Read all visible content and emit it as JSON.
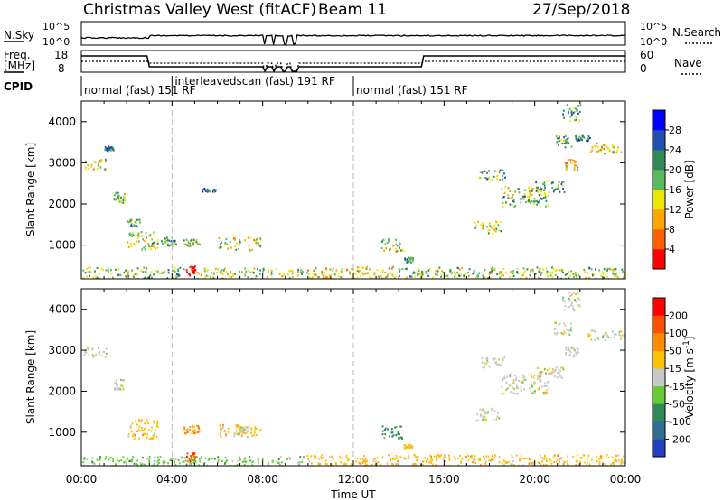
{
  "header": {
    "station": "Christmas Valley West (fitACF)",
    "beam": "Beam 11",
    "date": "27/Sep/2018"
  },
  "top_panel": {
    "left_label": "N.Sky",
    "left_ticks": [
      "10^5",
      "10^0"
    ],
    "right_label": "N.Search",
    "right_ticks": [
      "10^5",
      "10^0"
    ]
  },
  "freq_panel": {
    "left_label_1": "Freq.",
    "left_label_2": "[MHz]",
    "left_ticks": [
      "18",
      "8"
    ],
    "right_label": "Nave",
    "right_ticks": [
      "60",
      "0"
    ]
  },
  "cpid": {
    "label": "CPID",
    "segments": [
      {
        "text": "normal (fast)  151  RF",
        "start_hour": 0
      },
      {
        "text": "interleavedscan (fast)  191  RF",
        "start_hour": 4
      },
      {
        "text": "normal (fast)  151  RF",
        "start_hour": 12
      }
    ]
  },
  "x_axis": {
    "label": "Time UT",
    "ticks": [
      "00:00",
      "04:00",
      "08:00",
      "12:00",
      "16:00",
      "20:00",
      "00:00"
    ]
  },
  "power_colorbar": {
    "label": "Power [dB]",
    "ticks": [
      "28",
      "24",
      "20",
      "16",
      "12",
      "8",
      "4"
    ],
    "colors": [
      "#0000ff",
      "#2050b0",
      "#2e8b57",
      "#5cb85c",
      "#e8e800",
      "#ffa500",
      "#ff6000",
      "#ff0000"
    ]
  },
  "velocity_colorbar": {
    "label_text": "Velocity [m s",
    "label_sup": "-1",
    "label_close": "]",
    "ticks": [
      "200",
      "100",
      "50",
      "15",
      "-15",
      "-50",
      "-100",
      "-200"
    ],
    "colors": [
      "#2040c0",
      "#2e6e8e",
      "#2e8b57",
      "#66cc33",
      "#c8c8c8",
      "#ffc000",
      "#ff8c00",
      "#ff5000",
      "#ff0000"
    ]
  },
  "chart_data": [
    {
      "type": "heatmap",
      "title": "Power",
      "ylabel": "Slant Range [km]",
      "xlabel": "",
      "x_range_hours": [
        0,
        24
      ],
      "ylim_km": [
        180,
        4500
      ],
      "y_ticks": [
        "1000",
        "2000",
        "3000",
        "4000"
      ],
      "regions": [
        {
          "t0": 0.1,
          "t1": 1.1,
          "r0": 2850,
          "r1": 3100,
          "level": 0.55
        },
        {
          "t0": 1.0,
          "t1": 1.4,
          "r0": 3300,
          "r1": 3420,
          "level": 0.25
        },
        {
          "t0": 1.4,
          "t1": 1.9,
          "r0": 2050,
          "r1": 2300,
          "level": 0.45
        },
        {
          "t0": 2.0,
          "t1": 2.6,
          "r0": 1450,
          "r1": 1650,
          "level": 0.3
        },
        {
          "t0": 2.0,
          "t1": 3.4,
          "r0": 900,
          "r1": 1350,
          "level": 0.55
        },
        {
          "t0": 3.5,
          "t1": 4.2,
          "r0": 1000,
          "r1": 1200,
          "level": 0.35
        },
        {
          "t0": 4.5,
          "t1": 5.2,
          "r0": 980,
          "r1": 1180,
          "level": 0.45
        },
        {
          "t0": 5.3,
          "t1": 5.9,
          "r0": 2300,
          "r1": 2400,
          "level": 0.3
        },
        {
          "t0": 6.0,
          "t1": 7.9,
          "r0": 900,
          "r1": 1200,
          "level": 0.55
        },
        {
          "t0": 4.6,
          "t1": 5.0,
          "r0": 280,
          "r1": 520,
          "level": 1.0
        },
        {
          "t0": 0.0,
          "t1": 4.5,
          "r0": 190,
          "r1": 480,
          "level": 0.45
        },
        {
          "t0": 5.0,
          "t1": 9.8,
          "r0": 190,
          "r1": 460,
          "level": 0.5
        },
        {
          "t0": 9.9,
          "t1": 13.8,
          "r0": 190,
          "r1": 500,
          "level": 0.6
        },
        {
          "t0": 13.8,
          "t1": 24.0,
          "r0": 190,
          "r1": 480,
          "level": 0.45
        },
        {
          "t0": 13.2,
          "t1": 14.2,
          "r0": 850,
          "r1": 1180,
          "level": 0.55
        },
        {
          "t0": 14.2,
          "t1": 14.6,
          "r0": 600,
          "r1": 720,
          "level": 0.35
        },
        {
          "t0": 17.3,
          "t1": 18.5,
          "r0": 1300,
          "r1": 1600,
          "level": 0.5
        },
        {
          "t0": 17.5,
          "t1": 18.8,
          "r0": 2600,
          "r1": 2850,
          "level": 0.35
        },
        {
          "t0": 18.5,
          "t1": 20.6,
          "r0": 1950,
          "r1": 2450,
          "level": 0.45
        },
        {
          "t0": 20.0,
          "t1": 21.3,
          "r0": 2300,
          "r1": 2600,
          "level": 0.35
        },
        {
          "t0": 20.8,
          "t1": 21.6,
          "r0": 3400,
          "r1": 3700,
          "level": 0.35
        },
        {
          "t0": 21.2,
          "t1": 22.0,
          "r0": 4000,
          "r1": 4450,
          "level": 0.35
        },
        {
          "t0": 21.3,
          "t1": 21.9,
          "r0": 2850,
          "r1": 3100,
          "level": 0.65
        },
        {
          "t0": 22.3,
          "t1": 24.0,
          "r0": 3250,
          "r1": 3500,
          "level": 0.6
        },
        {
          "t0": 21.7,
          "t1": 22.5,
          "r0": 3550,
          "r1": 3700,
          "level": 0.3
        }
      ]
    },
    {
      "type": "heatmap",
      "title": "Velocity",
      "ylabel": "Slant Range [km]",
      "xlabel": "Time UT",
      "x_range_hours": [
        0,
        24
      ],
      "ylim_km": [
        180,
        4500
      ],
      "y_ticks": [
        "1000",
        "2000",
        "3000",
        "4000"
      ],
      "regions": [
        {
          "t0": 0.1,
          "t1": 1.1,
          "r0": 2850,
          "r1": 3100,
          "cls": 4
        },
        {
          "t0": 1.4,
          "t1": 1.9,
          "r0": 2050,
          "r1": 2300,
          "cls": 4
        },
        {
          "t0": 2.0,
          "t1": 3.4,
          "r0": 850,
          "r1": 1350,
          "cls": 5
        },
        {
          "t0": 4.5,
          "t1": 5.2,
          "r0": 980,
          "r1": 1180,
          "cls": 6
        },
        {
          "t0": 6.0,
          "t1": 7.9,
          "r0": 900,
          "r1": 1200,
          "cls": 5
        },
        {
          "t0": 6.8,
          "t1": 7.3,
          "r0": 950,
          "r1": 1150,
          "cls": 4
        },
        {
          "t0": 4.6,
          "t1": 5.0,
          "r0": 300,
          "r1": 520,
          "cls": 7
        },
        {
          "t0": 0.0,
          "t1": 9.8,
          "r0": 190,
          "r1": 430,
          "cls": 3
        },
        {
          "t0": 9.9,
          "t1": 24.0,
          "r0": 190,
          "r1": 470,
          "cls": 5
        },
        {
          "t0": 13.2,
          "t1": 14.2,
          "r0": 850,
          "r1": 1180,
          "cls": 2
        },
        {
          "t0": 14.2,
          "t1": 14.6,
          "r0": 600,
          "r1": 720,
          "cls": 5
        },
        {
          "t0": 17.3,
          "t1": 18.5,
          "r0": 1300,
          "r1": 1600,
          "cls": 4
        },
        {
          "t0": 17.5,
          "t1": 18.8,
          "r0": 2600,
          "r1": 2850,
          "cls": 4
        },
        {
          "t0": 18.5,
          "t1": 20.6,
          "r0": 1950,
          "r1": 2450,
          "cls": 4
        },
        {
          "t0": 20.0,
          "t1": 21.3,
          "r0": 2300,
          "r1": 2600,
          "cls": 4
        },
        {
          "t0": 20.8,
          "t1": 21.6,
          "r0": 3400,
          "r1": 3700,
          "cls": 4
        },
        {
          "t0": 21.2,
          "t1": 22.0,
          "r0": 4000,
          "r1": 4450,
          "cls": 4
        },
        {
          "t0": 21.3,
          "t1": 21.9,
          "r0": 2850,
          "r1": 3100,
          "cls": 4
        },
        {
          "t0": 22.3,
          "t1": 24.0,
          "r0": 3250,
          "r1": 3500,
          "cls": 4
        }
      ]
    }
  ]
}
